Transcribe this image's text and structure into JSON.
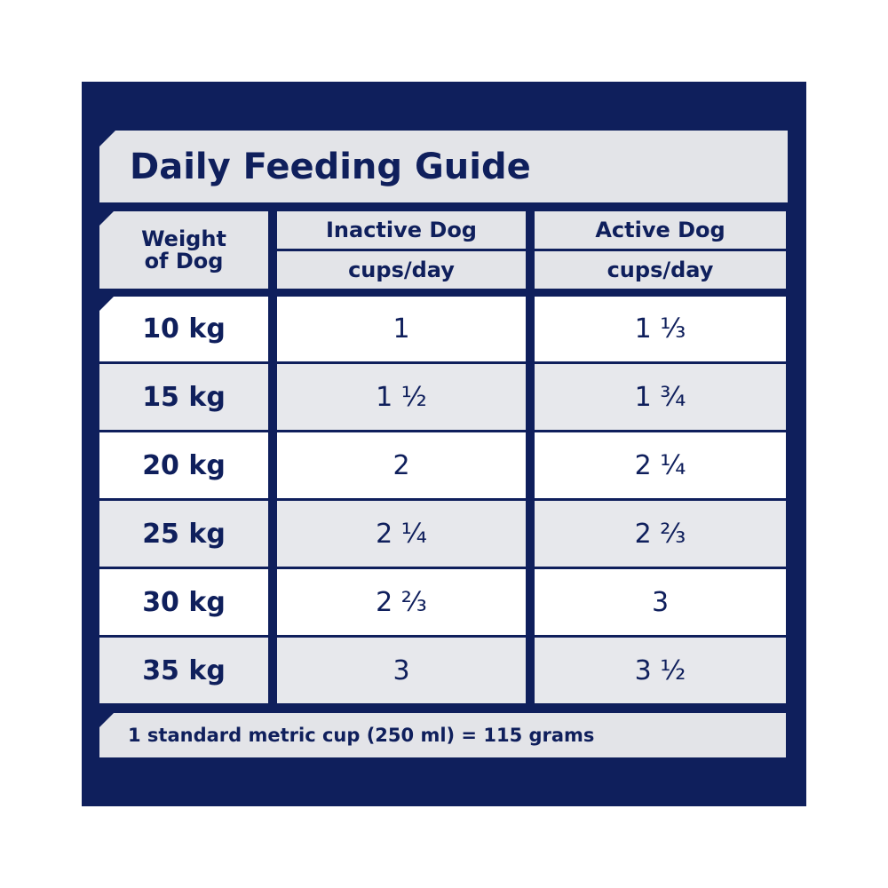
{
  "title": "Daily Feeding Guide",
  "header": {
    "weight_line1": "Weight",
    "weight_line2": "of Dog",
    "inactive": "Inactive Dog",
    "active": "Active Dog",
    "inactive_unit": "cups/day",
    "active_unit": "cups/day"
  },
  "rows": [
    {
      "weight": "10 kg",
      "inactive": "1",
      "active": "1 ⅓"
    },
    {
      "weight": "15 kg",
      "inactive": "1 ½",
      "active": "1 ¾"
    },
    {
      "weight": "20 kg",
      "inactive": "2",
      "active": "2 ¼"
    },
    {
      "weight": "25 kg",
      "inactive": "2 ¼",
      "active": "2 ⅔"
    },
    {
      "weight": "30 kg",
      "inactive": "2 ⅔",
      "active": "3"
    },
    {
      "weight": "35 kg",
      "inactive": "3",
      "active": "3 ½"
    }
  ],
  "footer": "1 standard metric cup (250 ml) = 115 grams",
  "colors": {
    "navy": "#0f1f5c",
    "light_grey": "#e3e4e8",
    "white": "#ffffff"
  }
}
